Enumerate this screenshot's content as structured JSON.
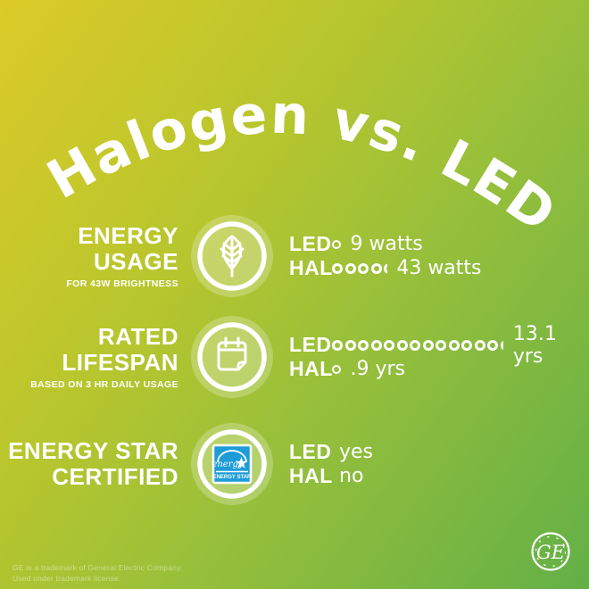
{
  "title": "Halogen vs. LED",
  "legend": {
    "led": "LED",
    "hal": "HAL"
  },
  "rows": [
    {
      "label_lines": [
        "ENERGY",
        "USAGE"
      ],
      "caption": "FOR 43W BRIGHTNESS",
      "icon": "leaf",
      "led_value": "9 watts",
      "hal_value": "43 watts",
      "led_dots": 0.9,
      "hal_dots": 4.3
    },
    {
      "label_lines": [
        "RATED",
        "LIFESPAN"
      ],
      "caption": "BASED ON 3 HR DAILY USAGE",
      "icon": "calendar",
      "led_value": "13.1 yrs",
      "hal_value": ".9 yrs",
      "led_dots": 13.1,
      "hal_dots": 0.9
    },
    {
      "label_lines": [
        "ENERGY STAR",
        "CERTIFIED"
      ],
      "caption": "",
      "icon": "energy-star",
      "led_value": "yes",
      "hal_value": "no",
      "led_dots": 0,
      "hal_dots": 0
    }
  ],
  "energy_star_logo": {
    "script": "energy",
    "caption": "ENERGY STAR"
  },
  "footer": {
    "line1": "GE is a trademark of General Electric Company.",
    "line2": "Used under trademark license.",
    "logo_monogram": "GE"
  },
  "colors": {
    "background_yellow": "#dcca28",
    "background_green": "#63b047",
    "energy_star_blue": "#1e9cd8",
    "text": "#ffffff"
  },
  "chart_data": {
    "type": "table",
    "title": "Halogen vs. LED",
    "categories": [
      "Energy usage (for 43W brightness)",
      "Rated lifespan (based on 3 hr daily usage)",
      "ENERGY STAR certified"
    ],
    "series": [
      {
        "name": "LED",
        "values": [
          "9 watts",
          "13.1 yrs",
          "yes"
        ]
      },
      {
        "name": "HAL",
        "values": [
          "43 watts",
          ".9 yrs",
          "no"
        ]
      }
    ],
    "dot_tally": {
      "energy_usage_watts_per_dot": 10,
      "lifespan_years_per_dot": 1,
      "LED_dots": [
        0.9,
        13.1,
        null
      ],
      "HAL_dots": [
        4.3,
        0.9,
        null
      ]
    },
    "legend_position": "inline rows LED/HAL",
    "notes": "infographic comparison card on yellow-to-green gradient"
  }
}
